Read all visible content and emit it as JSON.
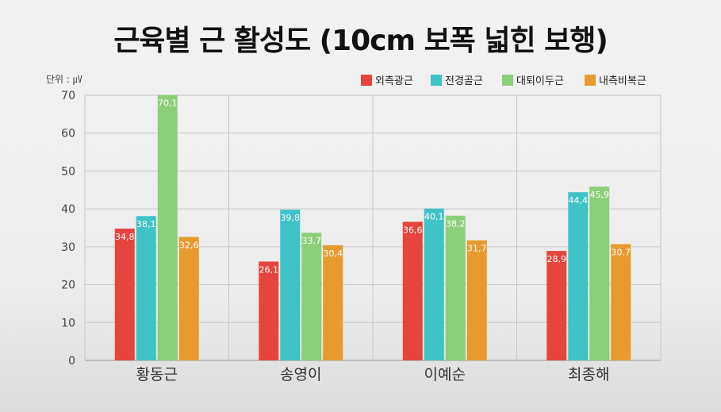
{
  "chart_data": {
    "type": "bar",
    "title": "근육별 근 활성도 (10cm 보폭 넓힌 보행)",
    "unit_label": "단위 : ㎶",
    "categories": [
      "황동근",
      "송영이",
      "이예순",
      "최종해"
    ],
    "series": [
      {
        "name": "외측광근",
        "color": "#e5453c",
        "values": [
          34.8,
          26.1,
          36.6,
          28.9
        ],
        "labels": [
          "34,8",
          "26,1",
          "36,6",
          "28,9"
        ]
      },
      {
        "name": "전경골근",
        "color": "#40c3c6",
        "values": [
          38.1,
          39.8,
          40.1,
          44.4
        ],
        "labels": [
          "38,1",
          "39,8",
          "40,1",
          "44,4"
        ]
      },
      {
        "name": "대퇴이두근",
        "color": "#8ccf79",
        "values": [
          70.1,
          33.7,
          38.2,
          45.9
        ],
        "labels": [
          "70,1",
          "33,7",
          "38,2",
          "45,9"
        ]
      },
      {
        "name": "내측비복근",
        "color": "#e79a2e",
        "values": [
          32.6,
          30.4,
          31.7,
          30.7
        ],
        "labels": [
          "32,6",
          "30,4",
          "31,7",
          "30,7"
        ]
      }
    ],
    "ylim": [
      0,
      70
    ],
    "yticks": [
      0,
      10,
      20,
      30,
      40,
      50,
      60,
      70
    ],
    "grid": true,
    "legend_position": "top-right"
  }
}
